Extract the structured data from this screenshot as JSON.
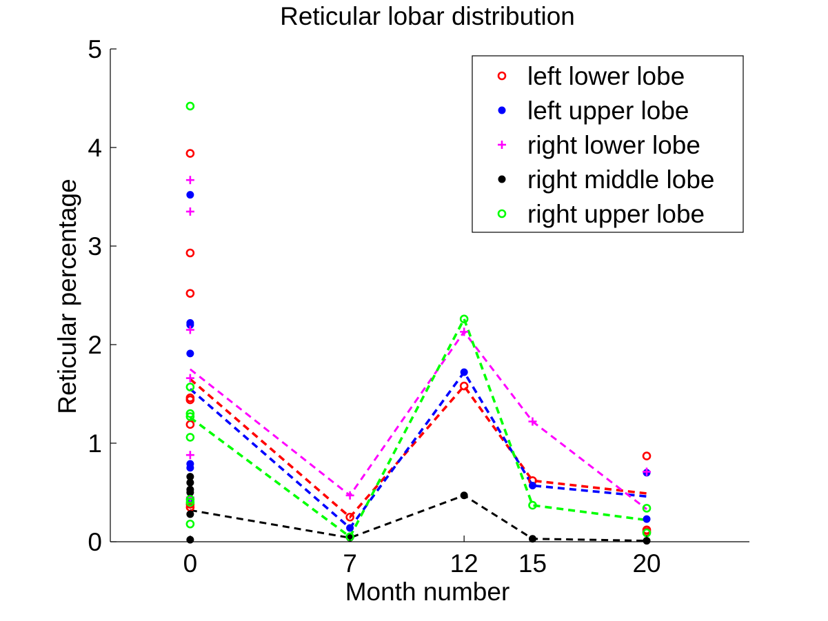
{
  "chart_data": {
    "type": "scatter",
    "title": "Reticular lobar distribution",
    "xlabel": "Month number",
    "ylabel": "Reticular percentage",
    "xlim": [
      -3.5,
      24.5
    ],
    "ylim": [
      0,
      5
    ],
    "xticks": [
      0,
      7,
      12,
      15,
      20
    ],
    "yticks": [
      0,
      1,
      2,
      3,
      4,
      5
    ],
    "grid": false,
    "legend_position": "top-right",
    "series": [
      {
        "name": "left lower lobe",
        "color": "#ff0000",
        "marker": "circle-open",
        "points": [
          [
            0,
            3.94
          ],
          [
            0,
            2.93
          ],
          [
            0,
            2.52
          ],
          [
            0,
            1.46
          ],
          [
            0,
            1.44
          ],
          [
            0,
            1.19
          ],
          [
            0,
            0.38
          ],
          [
            0,
            0.35
          ],
          [
            7,
            0.25
          ],
          [
            12,
            1.58
          ],
          [
            15,
            0.62
          ],
          [
            20,
            0.87
          ],
          [
            20,
            0.12
          ],
          [
            20,
            0.1
          ]
        ],
        "mean_line": [
          [
            0,
            1.65
          ],
          [
            7,
            0.25
          ],
          [
            12,
            1.58
          ],
          [
            15,
            0.62
          ],
          [
            20,
            0.49
          ]
        ]
      },
      {
        "name": "left upper lobe",
        "color": "#0000ff",
        "marker": "dot",
        "points": [
          [
            0,
            3.52
          ],
          [
            0,
            2.22
          ],
          [
            0,
            2.2
          ],
          [
            0,
            1.91
          ],
          [
            0,
            0.79
          ],
          [
            0,
            0.75
          ],
          [
            0,
            0.43
          ],
          [
            7,
            0.14
          ],
          [
            12,
            1.72
          ],
          [
            15,
            0.57
          ],
          [
            20,
            0.7
          ],
          [
            20,
            0.23
          ]
        ],
        "mean_line": [
          [
            0,
            1.55
          ],
          [
            7,
            0.14
          ],
          [
            12,
            1.72
          ],
          [
            15,
            0.57
          ],
          [
            20,
            0.46
          ]
        ]
      },
      {
        "name": "right lower lobe",
        "color": "#ff00ff",
        "marker": "plus",
        "points": [
          [
            0,
            3.67
          ],
          [
            0,
            3.35
          ],
          [
            0,
            2.15
          ],
          [
            0,
            1.66
          ],
          [
            0,
            0.88
          ],
          [
            0,
            0.45
          ],
          [
            7,
            0.47
          ],
          [
            12,
            2.13
          ],
          [
            15,
            1.22
          ],
          [
            20,
            0.71
          ]
        ],
        "mean_line": [
          [
            0,
            1.75
          ],
          [
            7,
            0.47
          ],
          [
            12,
            2.13
          ],
          [
            15,
            1.22
          ],
          [
            20,
            0.33
          ]
        ]
      },
      {
        "name": "right middle lobe",
        "color": "#000000",
        "marker": "dot",
        "points": [
          [
            0,
            0.66
          ],
          [
            0,
            0.6
          ],
          [
            0,
            0.53
          ],
          [
            0,
            0.5
          ],
          [
            0,
            0.28
          ],
          [
            0,
            0.02
          ],
          [
            7,
            0.04
          ],
          [
            12,
            0.47
          ],
          [
            15,
            0.03
          ],
          [
            20,
            0.01
          ]
        ],
        "mean_line": [
          [
            0,
            0.32
          ],
          [
            7,
            0.04
          ],
          [
            12,
            0.47
          ],
          [
            15,
            0.03
          ],
          [
            20,
            0.01
          ]
        ]
      },
      {
        "name": "right upper lobe",
        "color": "#00ff00",
        "marker": "circle-open",
        "points": [
          [
            0,
            4.42
          ],
          [
            0,
            1.57
          ],
          [
            0,
            1.3
          ],
          [
            0,
            1.27
          ],
          [
            0,
            1.06
          ],
          [
            0,
            0.43
          ],
          [
            0,
            0.4
          ],
          [
            0,
            0.18
          ],
          [
            7,
            0.05
          ],
          [
            12,
            2.26
          ],
          [
            15,
            0.37
          ],
          [
            20,
            0.34
          ],
          [
            20,
            0.09
          ]
        ],
        "mean_line": [
          [
            0,
            1.26
          ],
          [
            7,
            0.05
          ],
          [
            12,
            2.26
          ],
          [
            15,
            0.37
          ],
          [
            20,
            0.22
          ]
        ]
      }
    ]
  }
}
